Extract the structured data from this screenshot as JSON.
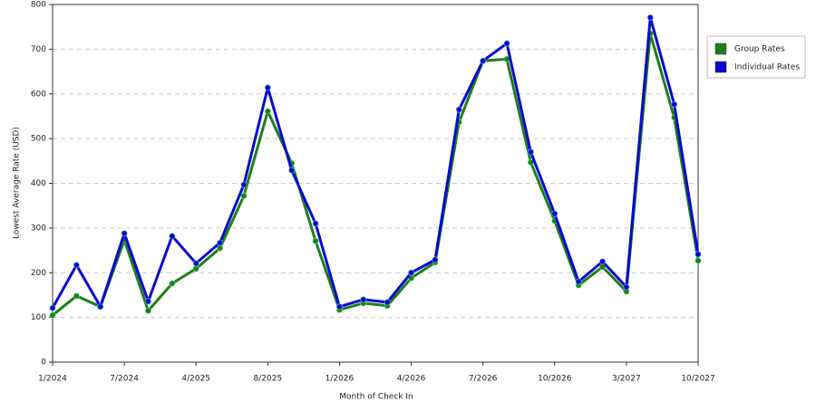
{
  "chart_data": {
    "type": "line",
    "x_label": "Month of Check In",
    "y_label": "Lowest Average Rate (USD)",
    "categories": [
      "1/2024",
      null,
      null,
      "7/2024",
      null,
      null,
      "4/2025",
      null,
      null,
      "8/2025",
      null,
      null,
      "1/2026",
      null,
      null,
      "4/2026",
      null,
      null,
      "7/2026",
      null,
      null,
      "10/2026",
      null,
      null,
      "3/2027",
      null,
      null,
      "10/2027"
    ],
    "series": [
      {
        "name": "Group Rates",
        "color": "#1b7f1b",
        "values": [
          105,
          148,
          124,
          273,
          115,
          176,
          209,
          255,
          372,
          561,
          445,
          271,
          117,
          132,
          126,
          188,
          223,
          537,
          674,
          678,
          447,
          316,
          172,
          213,
          158,
          735,
          547,
          227
        ]
      },
      {
        "name": "Individual Rates",
        "color": "#0a0ad0",
        "values": [
          121,
          217,
          124,
          288,
          136,
          282,
          221,
          267,
          397,
          614,
          429,
          310,
          124,
          140,
          134,
          200,
          229,
          565,
          674,
          713,
          470,
          332,
          180,
          225,
          168,
          771,
          577,
          241
        ]
      }
    ],
    "ylim": [
      0,
      800
    ],
    "yticks": [
      0,
      100,
      200,
      300,
      400,
      500,
      600,
      700,
      800
    ],
    "grid": true
  }
}
